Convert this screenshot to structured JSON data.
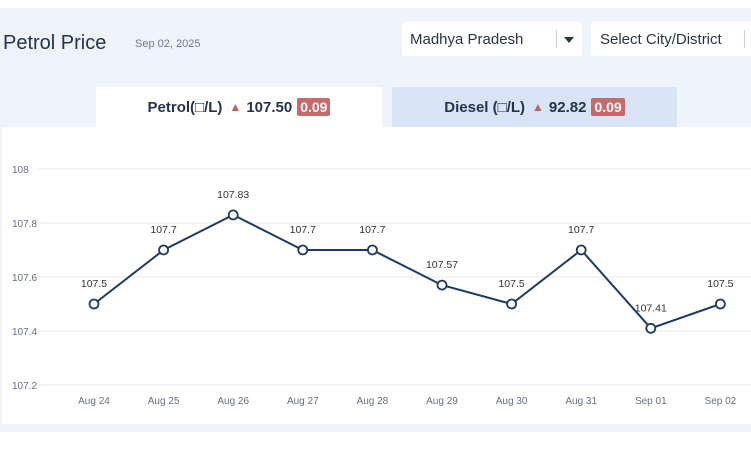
{
  "header": {
    "title": "Petrol Price",
    "date": "Sep 02, 2025"
  },
  "filters": {
    "state": "Madhya Pradesh",
    "city_placeholder": "Select City/District"
  },
  "tabs": [
    {
      "label": "Petrol(□/L)",
      "price": "107.50",
      "change": "0.09",
      "trend": "up",
      "active": true
    },
    {
      "label": "Diesel (□/L)",
      "price": "92.82",
      "change": "0.09",
      "trend": "up",
      "active": false
    }
  ],
  "colors": {
    "line": "#1e3a63",
    "badge": "#c66a6c",
    "trend_up": "#c0605e",
    "panel_bg": "#eff3fb",
    "inactive_tab": "#d9e4f6"
  },
  "chart_data": {
    "type": "line",
    "x": [
      "Aug 24",
      "Aug 25",
      "Aug 26",
      "Aug 27",
      "Aug 28",
      "Aug 29",
      "Aug 30",
      "Aug 31",
      "Sep 01",
      "Sep 02"
    ],
    "series": [
      {
        "values": [
          107.5,
          107.7,
          107.83,
          107.7,
          107.7,
          107.57,
          107.5,
          107.7,
          107.41,
          107.5
        ]
      }
    ],
    "data_labels": [
      "107.5",
      "107.7",
      "107.83",
      "107.7",
      "107.7",
      "107.57",
      "107.5",
      "107.7",
      "107.41",
      "107.5"
    ],
    "y_ticks": [
      "107.2",
      "107.4",
      "107.6",
      "107.8",
      "108"
    ],
    "ylim": [
      107.2,
      108
    ],
    "grid": true,
    "legend": "none"
  }
}
